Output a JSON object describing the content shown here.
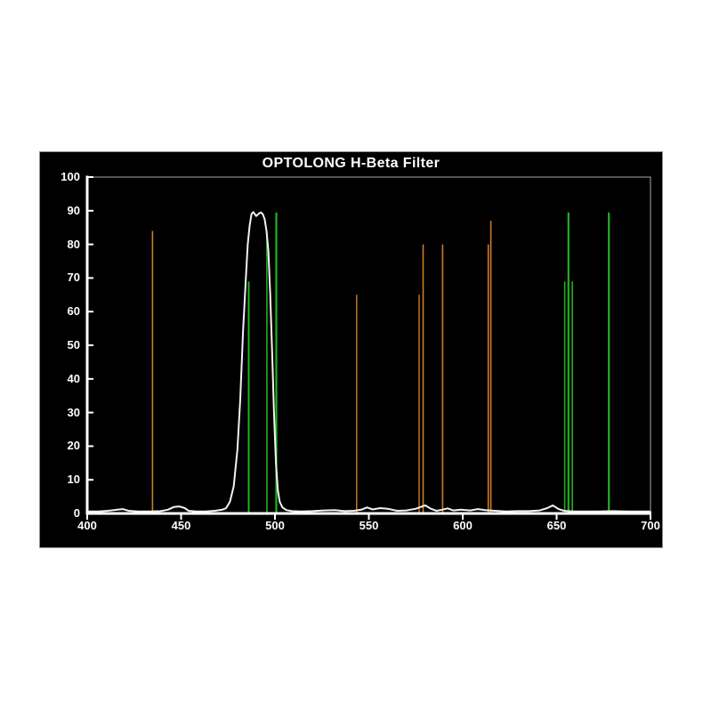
{
  "page": {
    "background": "#ffffff"
  },
  "chart": {
    "title": "OPTOLONG H-Beta Filter",
    "frame": {
      "bg": "#000000",
      "border": "#8f8f8f"
    },
    "axis": {
      "color": "#ffffff",
      "box_color": "#a8a8a8",
      "tick_label_color": "#ffffff"
    },
    "x_tick_labels": [
      "400",
      "450",
      "500",
      "550",
      "600",
      "650",
      "700"
    ],
    "y_tick_labels": [
      "0",
      "10",
      "20",
      "30",
      "40",
      "50",
      "60",
      "70",
      "80",
      "90",
      "100"
    ]
  },
  "chart_data": {
    "type": "line",
    "title": "OPTOLONG H-Beta Filter",
    "xlabel": "",
    "ylabel": "",
    "xlim": [
      400,
      700
    ],
    "ylim": [
      0,
      100
    ],
    "x_ticks": [
      400,
      450,
      500,
      550,
      600,
      650,
      700
    ],
    "y_ticks": [
      0,
      10,
      20,
      30,
      40,
      50,
      60,
      70,
      80,
      90,
      100
    ],
    "grid": false,
    "plot_bg": "#000000",
    "legend": "none",
    "series": [
      {
        "name": "filter transmission curve",
        "type": "line",
        "color": "#f2f2f2",
        "width": 2,
        "points": [
          [
            400,
            0.6
          ],
          [
            406,
            0.6
          ],
          [
            411,
            0.8
          ],
          [
            416,
            1.1
          ],
          [
            419,
            1.3
          ],
          [
            422,
            0.8
          ],
          [
            427,
            0.6
          ],
          [
            433,
            0.6
          ],
          [
            439,
            0.7
          ],
          [
            443,
            1.1
          ],
          [
            446,
            1.9
          ],
          [
            449,
            2.1
          ],
          [
            452,
            1.6
          ],
          [
            454,
            0.8
          ],
          [
            458,
            0.6
          ],
          [
            463,
            0.6
          ],
          [
            468,
            0.8
          ],
          [
            472,
            1.1
          ],
          [
            474,
            1.6
          ],
          [
            476,
            3.5
          ],
          [
            478,
            8
          ],
          [
            480,
            19
          ],
          [
            481.5,
            34
          ],
          [
            483,
            54
          ],
          [
            484.5,
            70
          ],
          [
            485.5,
            80
          ],
          [
            486.5,
            85.5
          ],
          [
            487.5,
            89
          ],
          [
            488.5,
            89.6
          ],
          [
            490,
            88.4
          ],
          [
            491.5,
            89.2
          ],
          [
            492.5,
            89.5
          ],
          [
            493.5,
            89
          ],
          [
            494.5,
            87.5
          ],
          [
            495.5,
            84
          ],
          [
            496.5,
            78
          ],
          [
            497.5,
            65
          ],
          [
            498.5,
            48
          ],
          [
            499.5,
            30
          ],
          [
            500.5,
            15
          ],
          [
            501.5,
            7
          ],
          [
            502.5,
            3.5
          ],
          [
            504,
            1.8
          ],
          [
            506,
            1
          ],
          [
            509,
            0.7
          ],
          [
            514,
            0.6
          ],
          [
            520,
            0.7
          ],
          [
            526,
            0.9
          ],
          [
            532,
            1.0
          ],
          [
            537,
            0.7
          ],
          [
            542,
            0.8
          ],
          [
            546,
            1.1
          ],
          [
            549,
            1.8
          ],
          [
            552,
            1.2
          ],
          [
            556,
            1.6
          ],
          [
            560,
            1.4
          ],
          [
            565,
            0.8
          ],
          [
            570,
            0.9
          ],
          [
            575,
            1.4
          ],
          [
            578,
            2.0
          ],
          [
            580,
            2.4
          ],
          [
            583,
            1.4
          ],
          [
            586,
            0.8
          ],
          [
            589,
            1.1
          ],
          [
            592,
            1.5
          ],
          [
            595,
            0.9
          ],
          [
            599,
            1.1
          ],
          [
            604,
            0.9
          ],
          [
            608,
            1.3
          ],
          [
            612,
            1.0
          ],
          [
            617,
            0.8
          ],
          [
            623,
            0.6
          ],
          [
            629,
            0.7
          ],
          [
            635,
            0.7
          ],
          [
            641,
            0.9
          ],
          [
            645,
            1.6
          ],
          [
            648,
            2.4
          ],
          [
            651,
            1.3
          ],
          [
            654,
            0.8
          ],
          [
            659,
            0.6
          ],
          [
            665,
            0.6
          ],
          [
            672,
            0.6
          ],
          [
            680,
            0.7
          ],
          [
            688,
            0.6
          ],
          [
            695,
            0.6
          ],
          [
            700,
            0.6
          ]
        ]
      }
    ],
    "vertical_lines": [
      {
        "group": "green emission lines",
        "color": "#22b022",
        "lines": [
          {
            "x": 486.0,
            "y": 69,
            "w": 2.0
          },
          {
            "x": 495.7,
            "y": 84,
            "w": 1.6
          },
          {
            "x": 500.7,
            "y": 89.5,
            "w": 2.2
          },
          {
            "x": 654.3,
            "y": 69,
            "w": 1.6
          },
          {
            "x": 656.3,
            "y": 89.5,
            "w": 2.2
          },
          {
            "x": 658.4,
            "y": 69,
            "w": 1.6
          },
          {
            "x": 677.8,
            "y": 89.5,
            "w": 2.2
          }
        ]
      },
      {
        "group": "orange emission lines",
        "color": "#cf7d26",
        "lines": [
          {
            "x": 434.8,
            "y": 84,
            "w": 1.6
          },
          {
            "x": 543.5,
            "y": 65,
            "w": 1.4
          },
          {
            "x": 576.8,
            "y": 65,
            "w": 1.4
          },
          {
            "x": 578.9,
            "y": 80,
            "w": 1.6
          },
          {
            "x": 589.3,
            "y": 80,
            "w": 1.6
          },
          {
            "x": 613.6,
            "y": 80,
            "w": 1.6
          },
          {
            "x": 615.0,
            "y": 87,
            "w": 1.6
          }
        ]
      }
    ]
  }
}
